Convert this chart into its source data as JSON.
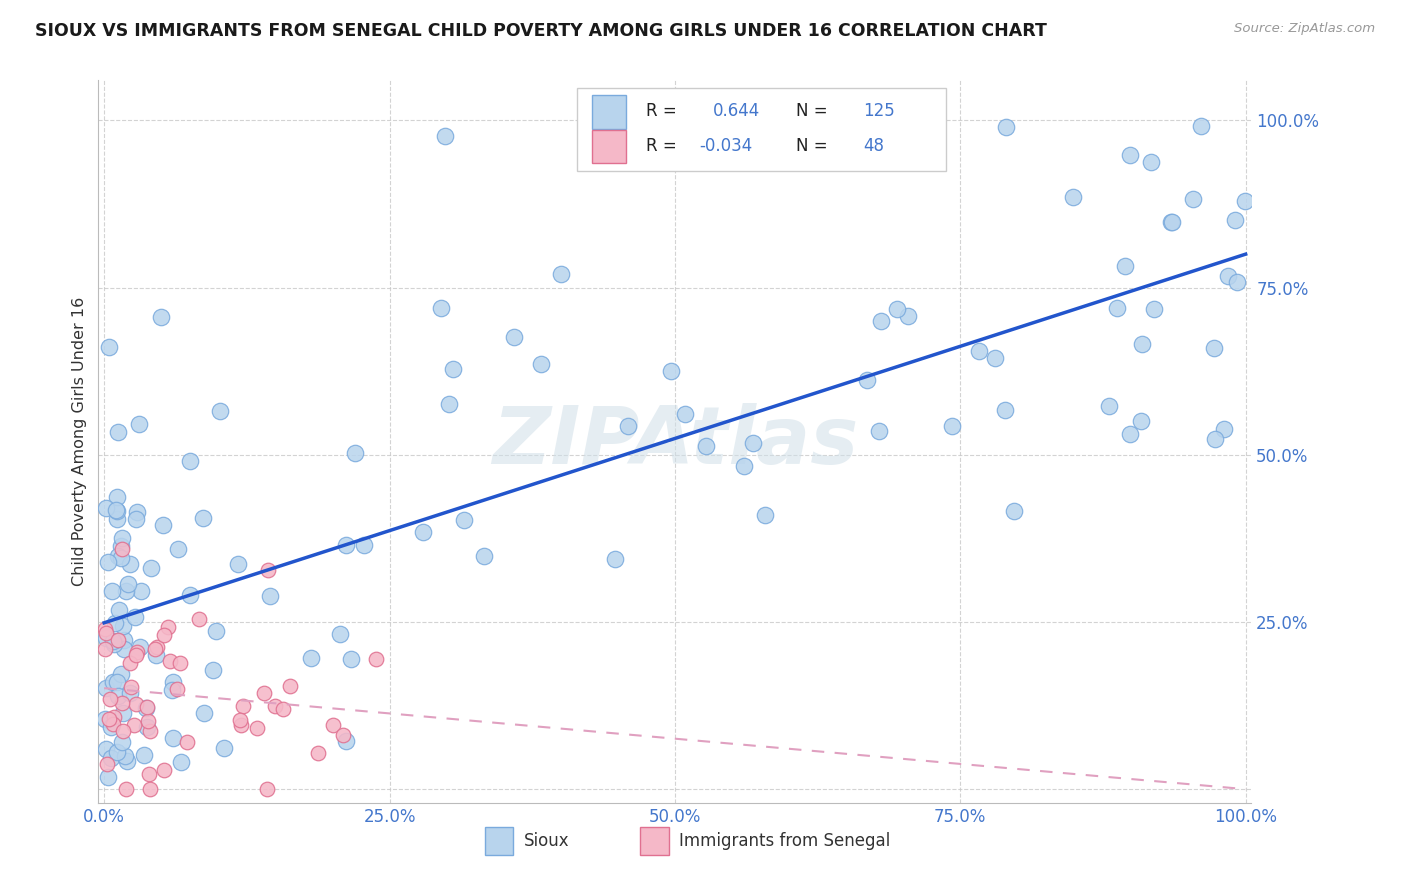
{
  "title": "SIOUX VS IMMIGRANTS FROM SENEGAL CHILD POVERTY AMONG GIRLS UNDER 16 CORRELATION CHART",
  "source": "Source: ZipAtlas.com",
  "ylabel": "Child Poverty Among Girls Under 16",
  "xtick_vals": [
    0.0,
    0.25,
    0.5,
    0.75,
    1.0
  ],
  "ytick_vals": [
    0.0,
    0.25,
    0.5,
    0.75,
    1.0
  ],
  "xticklabels": [
    "0.0%",
    "25.0%",
    "50.0%",
    "75.0%",
    "100.0%"
  ],
  "yticklabels": [
    "",
    "25.0%",
    "50.0%",
    "75.0%",
    "100.0%"
  ],
  "sioux_fill": "#b8d4ed",
  "sioux_edge": "#7aaadd",
  "senegal_fill": "#f5b8c8",
  "senegal_edge": "#e07090",
  "sioux_line_color": "#2255cc",
  "senegal_line_color": "#e0a0c0",
  "R_sioux": 0.644,
  "N_sioux": 125,
  "R_senegal": -0.034,
  "N_senegal": 48,
  "watermark_color": "#d0dfe8",
  "grid_color": "#c8c8c8",
  "title_color": "#1a1a1a",
  "tick_label_color": "#4477cc",
  "background_color": "#ffffff",
  "legend_value_color": "#4477cc"
}
